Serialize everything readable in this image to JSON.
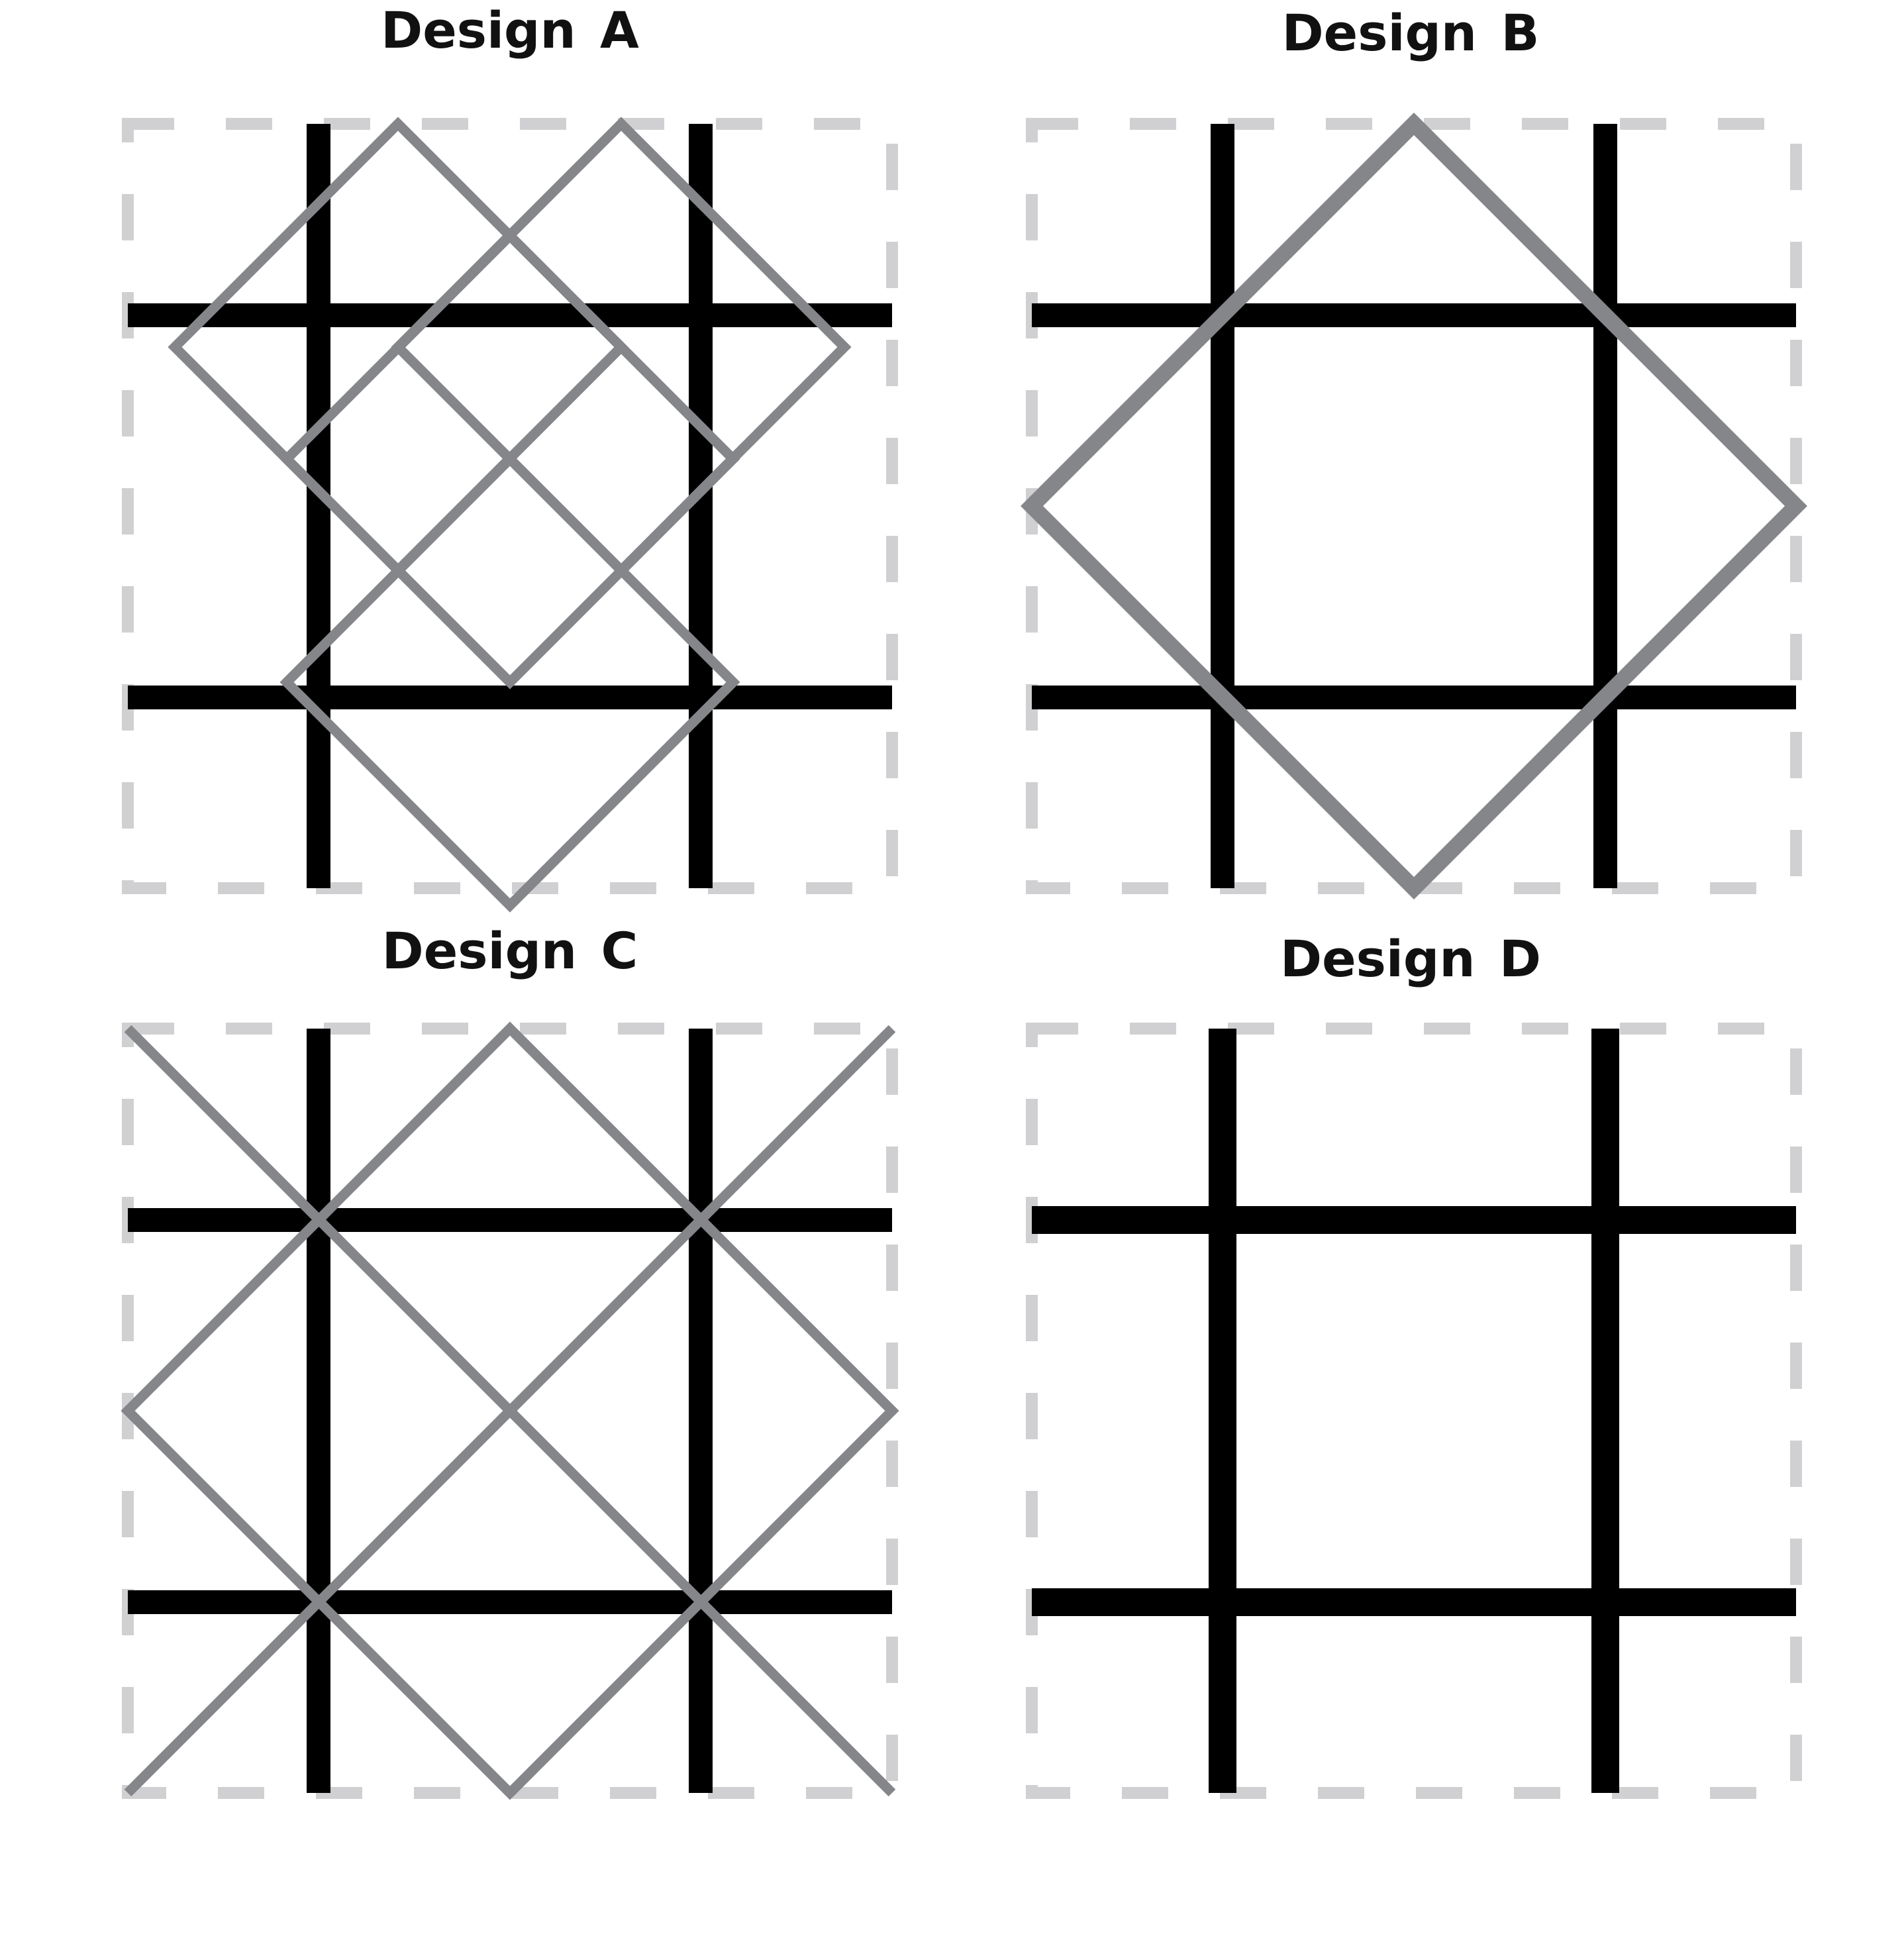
{
  "panels": {
    "a": {
      "title": "Design A"
    },
    "b": {
      "title": "Design B"
    },
    "c": {
      "title": "Design C"
    },
    "d": {
      "title": "Design D"
    }
  },
  "colors": {
    "background": "#ffffff",
    "frame_dash": "#d0d0d2",
    "grid_lines": "#000000",
    "diagonal_lines": "#85868a",
    "title_text": "#111111"
  }
}
